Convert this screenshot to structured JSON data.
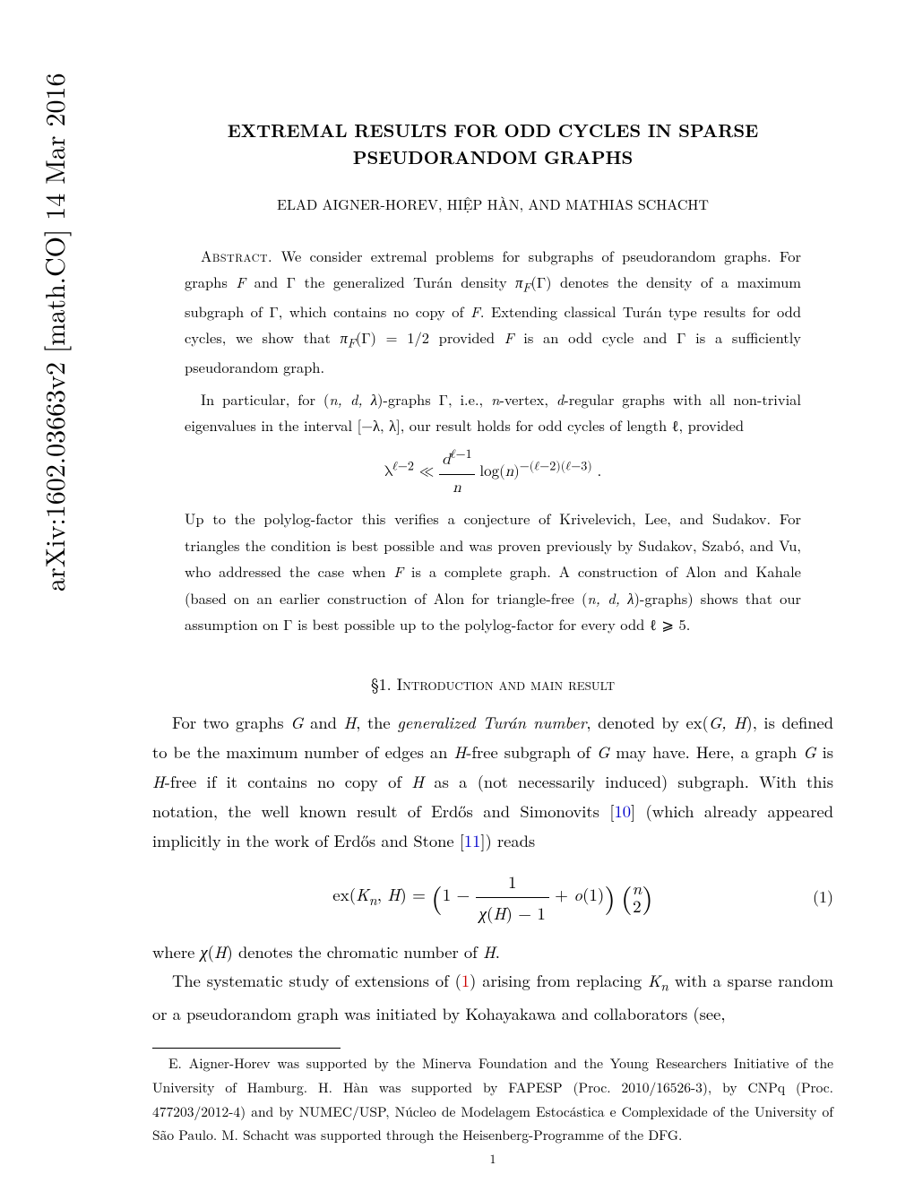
{
  "arxiv": "arXiv:1602.03663v2  [math.CO]  14 Mar 2016",
  "title_line1": "EXTREMAL RESULTS FOR ODD CYCLES IN SPARSE",
  "title_line2": "PSEUDORANDOM GRAPHS",
  "authors": "ELAD AIGNER-HOREV, HIỆP HÀN, AND MATHIAS SCHACHT",
  "abstract_label": "Abstract.",
  "abstract_p1_a": " We consider extremal problems for subgraphs of pseudorandom graphs. For graphs ",
  "abstract_p1_b": " and Γ the generalized Turán density ",
  "abstract_p1_c": "(Γ) denotes the density of a maximum subgraph of Γ, which contains no copy of ",
  "abstract_p1_d": ". Extending classical Turán type results for odd cycles, we show that ",
  "abstract_p1_e": "(Γ) = 1/2 provided ",
  "abstract_p1_f": " is an odd cycle and Γ is a sufficiently pseudorandom graph.",
  "abstract_p2_a": "In particular, for (",
  "abstract_p2_b": ")-graphs Γ, i.e., ",
  "abstract_p2_c": "-vertex, ",
  "abstract_p2_d": "-regular graphs with all non-trivial eigenvalues in the interval [−λ, λ], our result holds for odd cycles of length ℓ, provided",
  "formula1": "λ<sup>ℓ−2</sup> ≪ <span style=\"display:inline-block;vertical-align:middle;text-align:center;\"><span style=\"display:block;border-bottom:1px solid #000;padding:0 3px;\"><i>d</i><sup>ℓ−1</sup></span><span style=\"display:block;padding:0 3px;\"><i>n</i></span></span> log(<i>n</i>)<sup>−(ℓ−2)(ℓ−3)</sup> .",
  "abstract_p3": "Up to the polylog-factor this verifies a conjecture of Krivelevich, Lee, and Sudakov. For triangles the condition is best possible and was proven previously by Sudakov, Szabó, and Vu, who addressed the case when ",
  "abstract_p3_b": " is a complete graph. A construction of Alon and Kahale (based on an earlier construction of Alon for triangle-free (",
  "abstract_p3_c": ")-graphs) shows that our assumption on Γ is best possible up to the polylog-factor for every odd ℓ ⩾ 5.",
  "section1": "§1. Introduction and main result",
  "body_p1_a": "For two graphs ",
  "body_p1_b": " and ",
  "body_p1_c": ", the ",
  "body_p1_term": "generalized Turán number",
  "body_p1_d": ", denoted by ex(",
  "body_p1_e": "), is defined to be the maximum number of edges an ",
  "body_p1_f": "-free subgraph of ",
  "body_p1_g": " may have. Here, a graph ",
  "body_p1_h": " is ",
  "body_p1_i": "-free if it contains no copy of ",
  "body_p1_j": " as a (not necessarily induced) subgraph. With this notation, the well known result of Erdős and Simonovits [",
  "cite10": "10",
  "body_p1_k": "] (which already appeared implicitly in the work of Erdős and Stone [",
  "cite11": "11",
  "body_p1_l": "]) reads",
  "eq1": "ex(<i>K<sub>n</sub></i>, <i>H</i>) = <span style=\"font-size:32px;vertical-align:-8px;\">(</span>1 − <span style=\"display:inline-block;vertical-align:middle;text-align:center;\"><span style=\"display:block;border-bottom:1px solid #000;padding:0 4px;\">1</span><span style=\"display:block;padding:0 4px;\"><i>χ</i>(<i>H</i>) − 1</span></span> + <i>o</i>(1)<span style=\"font-size:32px;vertical-align:-8px;\">)</span> <span style=\"font-size:32px;vertical-align:-8px;\">(</span><span style=\"display:inline-block;vertical-align:middle;text-align:center;line-height:1.05;\"><span style=\"display:block;\"><i>n</i></span><span style=\"display:block;\">2</span></span><span style=\"font-size:32px;vertical-align:-8px;\">)</span>",
  "eqnum1": "(1)",
  "body_p2_a": "where ",
  "body_p2_b": " denotes the chromatic number of ",
  "body_p2_c": ".",
  "body_p3_a": "The systematic study of extensions of (",
  "eqref1": "1",
  "body_p3_b": ") arising from replacing ",
  "body_p3_c": " with a sparse random or a pseudorandom graph was initiated by Kohayakawa and collaborators (see,",
  "footnote": "E. Aigner-Horev was supported by the Minerva Foundation and the Young Researchers Initiative of the University of Hamburg. H. Hàn was supported by FAPESP (Proc. 2010/16526-3), by CNPq (Proc. 477203/2012-4) and by NUMEC/USP, Núcleo de Modelagem Estocástica e Complexidade of the University of São Paulo. M. Schacht was supported through the Heisenberg-Programme of the DFG.",
  "pagenum": "1"
}
